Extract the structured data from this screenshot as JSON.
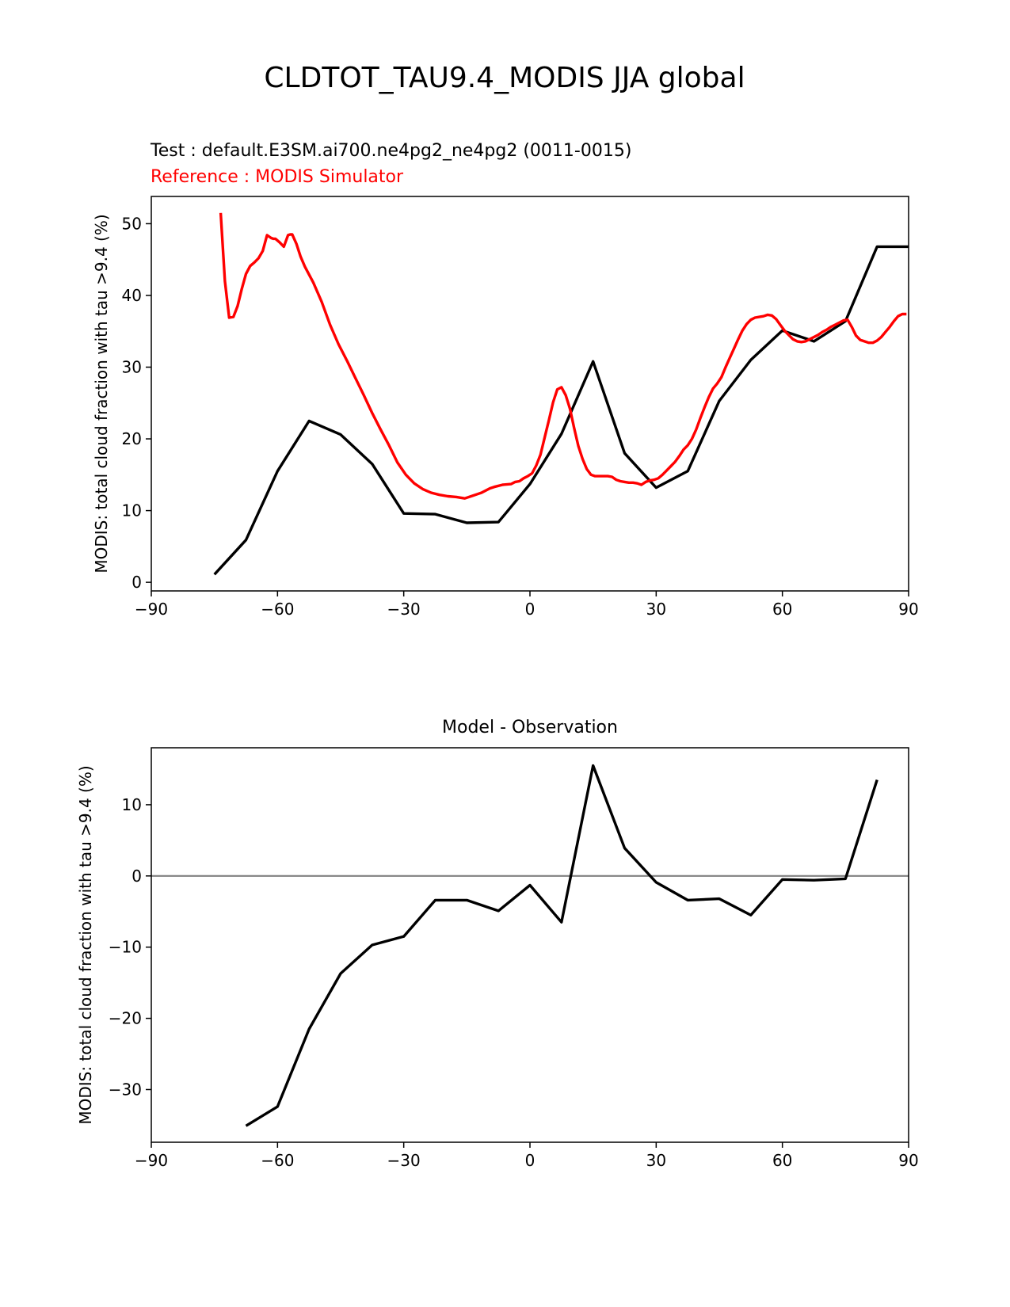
{
  "figure": {
    "suptitle": "CLDTOT_TAU9.4_MODIS JJA global"
  },
  "chart_data": [
    {
      "type": "line",
      "title": "",
      "test_label": "Test : default.E3SM.ai700.ne4pg2_ne4pg2 (0011-0015)",
      "reference_label": "Reference : MODIS Simulator",
      "xlabel": "",
      "ylabel": "MODIS: total cloud fraction with tau >9.4 (%)",
      "xlim": [
        -90,
        90
      ],
      "ylim": [
        -1.2,
        53.8
      ],
      "xticks": [
        -90,
        -60,
        -30,
        0,
        30,
        60,
        90
      ],
      "xtick_labels": [
        "−90",
        "−60",
        "−30",
        "0",
        "30",
        "60",
        "90"
      ],
      "yticks": [
        0,
        10,
        20,
        30,
        40,
        50
      ],
      "ytick_labels": [
        "0",
        "10",
        "20",
        "30",
        "40",
        "50"
      ],
      "series": [
        {
          "role": "test",
          "color": "#000000",
          "x": [
            -75,
            -67.5,
            -60,
            -52.5,
            -45,
            -37.5,
            -30,
            -22.5,
            -15,
            -7.5,
            0,
            7.5,
            15,
            22.5,
            30,
            37.5,
            45,
            52.5,
            60,
            67.5,
            75,
            82.5,
            90
          ],
          "y": [
            1.1,
            5.9,
            15.5,
            22.5,
            20.6,
            16.5,
            9.6,
            9.5,
            8.3,
            8.4,
            13.7,
            20.7,
            30.8,
            18.0,
            13.2,
            15.5,
            25.3,
            31.0,
            35.1,
            33.6,
            36.4,
            46.8,
            46.8
          ]
        },
        {
          "role": "reference",
          "color": "#ff0000",
          "x": [
            -73.5,
            -72.5,
            -71.5,
            -70.5,
            -69.5,
            -68.5,
            -67.5,
            -66.5,
            -65.5,
            -64.5,
            -63.5,
            -62.5,
            -61.5,
            -61,
            -60.5,
            -59.5,
            -58.5,
            -57.5,
            -57,
            -56.5,
            -55.5,
            -54.5,
            -53.5,
            -51.5,
            -49.5,
            -47.5,
            -45.5,
            -43.5,
            -41.5,
            -39.5,
            -37.5,
            -35.5,
            -33.5,
            -31.5,
            -29.5,
            -27.5,
            -25.5,
            -23.5,
            -21.5,
            -19.5,
            -17.5,
            -15.5,
            -13.5,
            -12.5,
            -11.5,
            -10.5,
            -9.5,
            -8.5,
            -6.5,
            -4.5,
            -3.5,
            -2.5,
            -1.5,
            -0.5,
            0.5,
            1.5,
            2.5,
            3.5,
            4.5,
            5.5,
            6.5,
            7.5,
            8.5,
            9.5,
            10.5,
            11.5,
            12.5,
            13.5,
            14.5,
            15.5,
            17.5,
            18.5,
            19.5,
            20.5,
            21.5,
            22.5,
            23.5,
            24.5,
            25.5,
            26.5,
            27.5,
            28.5,
            29.5,
            30.5,
            31.5,
            32.5,
            33.5,
            34.5,
            35.5,
            36.5,
            37.5,
            38.5,
            39.5,
            40.5,
            41.5,
            42.5,
            43.5,
            44.5,
            45.5,
            46.5,
            47.5,
            48.5,
            49.5,
            50.5,
            51.5,
            52.5,
            53.5,
            54.5,
            55.5,
            56.5,
            57.5,
            58.5,
            59.5,
            60.5,
            61.5,
            62.5,
            63.5,
            64.5,
            65.5,
            66.5,
            67.5,
            68.5,
            69.5,
            70.5,
            71.5,
            72.5,
            73.5,
            74.5,
            75.5,
            76.5,
            77.5,
            78.5,
            79.5,
            80.5,
            81.5,
            82.5,
            83.5,
            84.5,
            85.5,
            86.5,
            87.5,
            88.5,
            89.5
          ],
          "y": [
            51.5,
            42.0,
            36.9,
            37.0,
            38.5,
            40.9,
            43.0,
            44.1,
            44.6,
            45.2,
            46.2,
            48.4,
            48.0,
            47.9,
            47.9,
            47.4,
            46.8,
            48.4,
            48.5,
            48.5,
            47.2,
            45.4,
            44.0,
            41.8,
            39.1,
            35.9,
            33.2,
            30.9,
            28.5,
            26.1,
            23.6,
            21.3,
            19.1,
            16.7,
            15.0,
            13.8,
            13.0,
            12.5,
            12.2,
            12.0,
            11.9,
            11.7,
            12.1,
            12.3,
            12.5,
            12.8,
            13.1,
            13.3,
            13.6,
            13.7,
            14.0,
            14.1,
            14.5,
            14.8,
            15.2,
            16.3,
            17.8,
            20.2,
            22.6,
            25.1,
            26.9,
            27.2,
            26.1,
            24.2,
            21.5,
            19.0,
            17.2,
            15.8,
            15.0,
            14.8,
            14.8,
            14.8,
            14.7,
            14.3,
            14.1,
            14.0,
            13.9,
            13.9,
            13.8,
            13.6,
            14.0,
            14.2,
            14.3,
            14.5,
            15.0,
            15.6,
            16.2,
            16.8,
            17.6,
            18.5,
            19.1,
            20.0,
            21.3,
            22.9,
            24.4,
            25.8,
            27.0,
            27.7,
            28.6,
            30.0,
            31.3,
            32.6,
            33.9,
            35.1,
            36.0,
            36.6,
            36.9,
            37.0,
            37.1,
            37.3,
            37.2,
            36.7,
            35.9,
            35.1,
            34.5,
            33.9,
            33.6,
            33.5,
            33.6,
            33.9,
            34.2,
            34.5,
            34.9,
            35.2,
            35.6,
            35.9,
            36.2,
            36.5,
            36.6,
            35.6,
            34.4,
            33.8,
            33.6,
            33.4,
            33.4,
            33.7,
            34.2,
            34.9,
            35.6,
            36.4,
            37.1,
            37.4,
            37.4
          ]
        }
      ]
    },
    {
      "type": "line",
      "title": "Model - Observation",
      "xlabel": "",
      "ylabel": "MODIS: total cloud fraction with tau >9.4 (%)",
      "xlim": [
        -90,
        90
      ],
      "ylim": [
        -37.4,
        18.0
      ],
      "xticks": [
        -90,
        -60,
        -30,
        0,
        30,
        60,
        90
      ],
      "xtick_labels": [
        "−90",
        "−60",
        "−30",
        "0",
        "30",
        "60",
        "90"
      ],
      "yticks": [
        -30,
        -20,
        -10,
        0,
        10
      ],
      "ytick_labels": [
        "−30",
        "−20",
        "−10",
        "0",
        "10"
      ],
      "zero_line_color": "#808080",
      "series": [
        {
          "role": "difference",
          "color": "#000000",
          "x": [
            -67.5,
            -60,
            -52.5,
            -45,
            -37.5,
            -30,
            -22.5,
            -15,
            -7.5,
            0,
            7.5,
            15,
            22.5,
            30,
            37.5,
            45,
            52.5,
            60,
            67.5,
            75,
            82.5
          ],
          "y": [
            -35.1,
            -32.4,
            -21.5,
            -13.7,
            -9.7,
            -8.5,
            -3.4,
            -3.4,
            -4.9,
            -1.3,
            -6.5,
            15.5,
            3.9,
            -0.9,
            -3.4,
            -3.2,
            -5.5,
            -0.5,
            -0.6,
            -0.4,
            13.5
          ]
        }
      ]
    }
  ]
}
